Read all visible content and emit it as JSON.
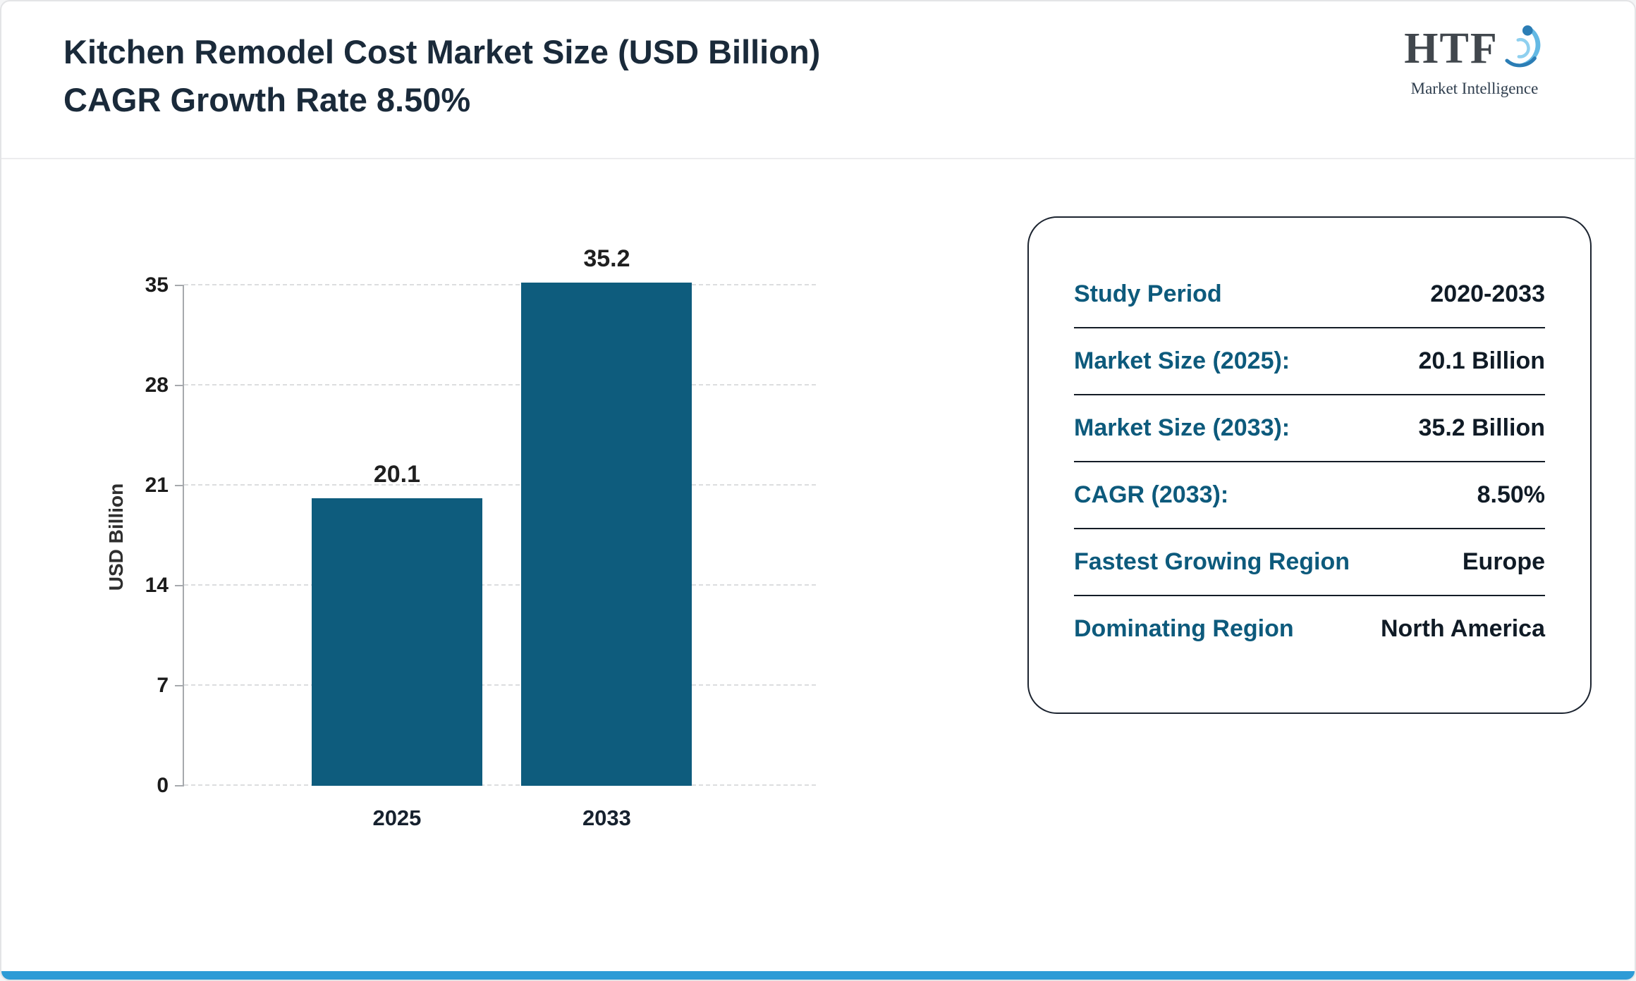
{
  "header": {
    "title_line1": "Kitchen Remodel Cost Market Size (USD Billion)",
    "title_line2": "CAGR Growth Rate 8.50%",
    "logo_text": "HTF",
    "logo_subtext": "Market Intelligence"
  },
  "chart_data": {
    "type": "bar",
    "title": "Kitchen Remodel Cost Market Size (USD Billion)",
    "categories": [
      "2025",
      "2033"
    ],
    "values": [
      20.1,
      35.2
    ],
    "value_labels": [
      "20.1",
      "35.2"
    ],
    "xlabel": "",
    "ylabel": "USD Billion",
    "yticks": [
      "0",
      "7",
      "14",
      "21",
      "28",
      "35"
    ],
    "ylim": [
      0,
      35
    ],
    "bar_color": "#0e5c7d",
    "grid": "horizontal-dashed",
    "legend": "none"
  },
  "info_card": {
    "rows": [
      {
        "label": "Study Period",
        "value": "2020-2033"
      },
      {
        "label": "Market Size (2025):",
        "value": "20.1 Billion"
      },
      {
        "label": "Market Size (2033):",
        "value": "35.2 Billion"
      },
      {
        "label": "CAGR (2033):",
        "value": "8.50%"
      },
      {
        "label": "Fastest Growing Region",
        "value": "Europe"
      },
      {
        "label": "Dominating Region",
        "value": "North America"
      }
    ]
  },
  "colors": {
    "title_text": "#1a2a3a",
    "bar": "#0e5c7d",
    "card_label": "#0d5a7c",
    "card_value": "#101b26",
    "bottom_strip": "#2d9bd6"
  }
}
